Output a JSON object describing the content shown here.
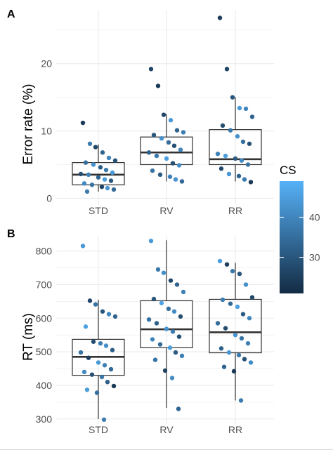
{
  "chart_data": [
    {
      "panel": "A",
      "type": "box",
      "ylabel": "Error rate (%)",
      "categories": [
        "STD",
        "RV",
        "RR"
      ],
      "ylim": [
        -1,
        28
      ],
      "yticks": [
        0,
        10,
        20
      ],
      "grid": true,
      "boxes": [
        {
          "category": "STD",
          "q1": 2.0,
          "median": 3.5,
          "q3": 5.3,
          "whisker_low": 1.0,
          "whisker_high": 8.0
        },
        {
          "category": "RV",
          "q1": 5.0,
          "median": 6.8,
          "q3": 9.1,
          "whisker_low": 2.5,
          "whisker_high": 12.5
        },
        {
          "category": "RR",
          "q1": 5.0,
          "median": 5.8,
          "q3": 10.2,
          "whisker_low": 2.5,
          "whisker_high": 15.0
        }
      ],
      "points": [
        {
          "category": "STD",
          "y": 11.2,
          "cs": 24
        },
        {
          "category": "STD",
          "y": 8.1,
          "cs": 38
        },
        {
          "category": "STD",
          "y": 7.6,
          "cs": 27
        },
        {
          "category": "STD",
          "y": 6.8,
          "cs": 33
        },
        {
          "category": "STD",
          "y": 6.0,
          "cs": 40
        },
        {
          "category": "STD",
          "y": 5.6,
          "cs": 29
        },
        {
          "category": "STD",
          "y": 5.3,
          "cs": 35
        },
        {
          "category": "STD",
          "y": 5.0,
          "cs": 42
        },
        {
          "category": "STD",
          "y": 4.6,
          "cs": 31
        },
        {
          "category": "STD",
          "y": 4.2,
          "cs": 37
        },
        {
          "category": "STD",
          "y": 3.8,
          "cs": 44
        },
        {
          "category": "STD",
          "y": 3.6,
          "cs": 28
        },
        {
          "category": "STD",
          "y": 3.5,
          "cs": 39
        },
        {
          "category": "STD",
          "y": 3.1,
          "cs": 33
        },
        {
          "category": "STD",
          "y": 2.8,
          "cs": 45
        },
        {
          "category": "STD",
          "y": 2.6,
          "cs": 30
        },
        {
          "category": "STD",
          "y": 2.2,
          "cs": 41
        },
        {
          "category": "STD",
          "y": 2.0,
          "cs": 36
        },
        {
          "category": "STD",
          "y": 1.7,
          "cs": 26
        },
        {
          "category": "STD",
          "y": 1.5,
          "cs": 43
        },
        {
          "category": "STD",
          "y": 1.3,
          "cs": 34
        },
        {
          "category": "STD",
          "y": 1.0,
          "cs": 38
        },
        {
          "category": "RV",
          "y": 19.2,
          "cs": 26
        },
        {
          "category": "RV",
          "y": 16.7,
          "cs": 24
        },
        {
          "category": "RV",
          "y": 12.4,
          "cs": 27
        },
        {
          "category": "RV",
          "y": 11.6,
          "cs": 44
        },
        {
          "category": "RV",
          "y": 10.1,
          "cs": 33
        },
        {
          "category": "RV",
          "y": 9.8,
          "cs": 38
        },
        {
          "category": "RV",
          "y": 9.4,
          "cs": 30
        },
        {
          "category": "RV",
          "y": 8.9,
          "cs": 42
        },
        {
          "category": "RV",
          "y": 8.3,
          "cs": 35
        },
        {
          "category": "RV",
          "y": 7.8,
          "cs": 28
        },
        {
          "category": "RV",
          "y": 7.2,
          "cs": 40
        },
        {
          "category": "RV",
          "y": 6.8,
          "cs": 32
        },
        {
          "category": "RV",
          "y": 6.3,
          "cs": 37
        },
        {
          "category": "RV",
          "y": 5.9,
          "cs": 45
        },
        {
          "category": "RV",
          "y": 5.2,
          "cs": 29
        },
        {
          "category": "RV",
          "y": 4.9,
          "cs": 41
        },
        {
          "category": "RV",
          "y": 4.1,
          "cs": 36
        },
        {
          "category": "RV",
          "y": 3.5,
          "cs": 31
        },
        {
          "category": "RV",
          "y": 3.2,
          "cs": 39
        },
        {
          "category": "RV",
          "y": 2.8,
          "cs": 43
        },
        {
          "category": "RV",
          "y": 2.5,
          "cs": 34
        },
        {
          "category": "RR",
          "y": 26.8,
          "cs": 25
        },
        {
          "category": "RR",
          "y": 19.2,
          "cs": 26
        },
        {
          "category": "RR",
          "y": 15.0,
          "cs": 30
        },
        {
          "category": "RR",
          "y": 13.4,
          "cs": 44
        },
        {
          "category": "RR",
          "y": 13.3,
          "cs": 40
        },
        {
          "category": "RR",
          "y": 12.1,
          "cs": 33
        },
        {
          "category": "RR",
          "y": 10.8,
          "cs": 28
        },
        {
          "category": "RR",
          "y": 10.1,
          "cs": 37
        },
        {
          "category": "RR",
          "y": 9.2,
          "cs": 42
        },
        {
          "category": "RR",
          "y": 8.4,
          "cs": 35
        },
        {
          "category": "RR",
          "y": 8.1,
          "cs": 29
        },
        {
          "category": "RR",
          "y": 6.6,
          "cs": 39
        },
        {
          "category": "RR",
          "y": 6.3,
          "cs": 45
        },
        {
          "category": "RR",
          "y": 5.9,
          "cs": 31
        },
        {
          "category": "RR",
          "y": 5.6,
          "cs": 41
        },
        {
          "category": "RR",
          "y": 5.0,
          "cs": 36
        },
        {
          "category": "RR",
          "y": 4.4,
          "cs": 27
        },
        {
          "category": "RR",
          "y": 3.6,
          "cs": 43
        },
        {
          "category": "RR",
          "y": 3.3,
          "cs": 32
        },
        {
          "category": "RR",
          "y": 2.8,
          "cs": 38
        },
        {
          "category": "RR",
          "y": 2.4,
          "cs": 24
        }
      ]
    },
    {
      "panel": "B",
      "type": "box",
      "ylabel": "RT (ms)",
      "categories": [
        "STD",
        "RV",
        "RR"
      ],
      "ylim": [
        285,
        845
      ],
      "yticks": [
        300,
        400,
        500,
        600,
        700,
        800
      ],
      "grid": true,
      "boxes": [
        {
          "category": "STD",
          "q1": 430,
          "median": 485,
          "q3": 537,
          "whisker_low": 300,
          "whisker_high": 655
        },
        {
          "category": "RV",
          "q1": 512,
          "median": 567,
          "q3": 652,
          "whisker_low": 333,
          "whisker_high": 832
        },
        {
          "category": "RR",
          "q1": 497,
          "median": 558,
          "q3": 656,
          "whisker_low": 355,
          "whisker_high": 765
        }
      ],
      "points": [
        {
          "category": "STD",
          "y": 815,
          "cs": 44
        },
        {
          "category": "STD",
          "y": 652,
          "cs": 27
        },
        {
          "category": "STD",
          "y": 641,
          "cs": 36
        },
        {
          "category": "STD",
          "y": 620,
          "cs": 30
        },
        {
          "category": "STD",
          "y": 612,
          "cs": 40
        },
        {
          "category": "STD",
          "y": 605,
          "cs": 33
        },
        {
          "category": "STD",
          "y": 575,
          "cs": 46
        },
        {
          "category": "STD",
          "y": 530,
          "cs": 28
        },
        {
          "category": "STD",
          "y": 525,
          "cs": 38
        },
        {
          "category": "STD",
          "y": 518,
          "cs": 42
        },
        {
          "category": "STD",
          "y": 505,
          "cs": 31
        },
        {
          "category": "STD",
          "y": 498,
          "cs": 36
        },
        {
          "category": "STD",
          "y": 482,
          "cs": 25
        },
        {
          "category": "STD",
          "y": 468,
          "cs": 44
        },
        {
          "category": "STD",
          "y": 460,
          "cs": 39
        },
        {
          "category": "STD",
          "y": 448,
          "cs": 34
        },
        {
          "category": "STD",
          "y": 440,
          "cs": 41
        },
        {
          "category": "STD",
          "y": 432,
          "cs": 29
        },
        {
          "category": "STD",
          "y": 425,
          "cs": 37
        },
        {
          "category": "STD",
          "y": 410,
          "cs": 32
        },
        {
          "category": "STD",
          "y": 398,
          "cs": 24
        },
        {
          "category": "STD",
          "y": 387,
          "cs": 45
        },
        {
          "category": "STD",
          "y": 378,
          "cs": 35
        },
        {
          "category": "STD",
          "y": 298,
          "cs": 38
        },
        {
          "category": "RV",
          "y": 830,
          "cs": 44
        },
        {
          "category": "RV",
          "y": 745,
          "cs": 37
        },
        {
          "category": "RV",
          "y": 735,
          "cs": 42
        },
        {
          "category": "RV",
          "y": 712,
          "cs": 27
        },
        {
          "category": "RV",
          "y": 700,
          "cs": 33
        },
        {
          "category": "RV",
          "y": 678,
          "cs": 39
        },
        {
          "category": "RV",
          "y": 657,
          "cs": 30
        },
        {
          "category": "RV",
          "y": 645,
          "cs": 46
        },
        {
          "category": "RV",
          "y": 628,
          "cs": 35
        },
        {
          "category": "RV",
          "y": 620,
          "cs": 41
        },
        {
          "category": "RV",
          "y": 605,
          "cs": 28
        },
        {
          "category": "RV",
          "y": 596,
          "cs": 36
        },
        {
          "category": "RV",
          "y": 585,
          "cs": 32
        },
        {
          "category": "RV",
          "y": 568,
          "cs": 43
        },
        {
          "category": "RV",
          "y": 560,
          "cs": 38
        },
        {
          "category": "RV",
          "y": 545,
          "cs": 29
        },
        {
          "category": "RV",
          "y": 537,
          "cs": 40
        },
        {
          "category": "RV",
          "y": 522,
          "cs": 34
        },
        {
          "category": "RV",
          "y": 512,
          "cs": 45
        },
        {
          "category": "RV",
          "y": 498,
          "cs": 31
        },
        {
          "category": "RV",
          "y": 488,
          "cs": 39
        },
        {
          "category": "RV",
          "y": 476,
          "cs": 36
        },
        {
          "category": "RV",
          "y": 444,
          "cs": 26
        },
        {
          "category": "RV",
          "y": 422,
          "cs": 41
        },
        {
          "category": "RV",
          "y": 330,
          "cs": 33
        },
        {
          "category": "RR",
          "y": 770,
          "cs": 45
        },
        {
          "category": "RR",
          "y": 760,
          "cs": 25
        },
        {
          "category": "RR",
          "y": 740,
          "cs": 37
        },
        {
          "category": "RR",
          "y": 732,
          "cs": 30
        },
        {
          "category": "RR",
          "y": 700,
          "cs": 42
        },
        {
          "category": "RR",
          "y": 662,
          "cs": 27
        },
        {
          "category": "RR",
          "y": 655,
          "cs": 38
        },
        {
          "category": "RR",
          "y": 643,
          "cs": 34
        },
        {
          "category": "RR",
          "y": 634,
          "cs": 46
        },
        {
          "category": "RR",
          "y": 612,
          "cs": 31
        },
        {
          "category": "RR",
          "y": 600,
          "cs": 40
        },
        {
          "category": "RR",
          "y": 585,
          "cs": 35
        },
        {
          "category": "RR",
          "y": 570,
          "cs": 28
        },
        {
          "category": "RR",
          "y": 550,
          "cs": 43
        },
        {
          "category": "RR",
          "y": 540,
          "cs": 36
        },
        {
          "category": "RR",
          "y": 525,
          "cs": 39
        },
        {
          "category": "RR",
          "y": 510,
          "cs": 32
        },
        {
          "category": "RR",
          "y": 498,
          "cs": 44
        },
        {
          "category": "RR",
          "y": 490,
          "cs": 37
        },
        {
          "category": "RR",
          "y": 478,
          "cs": 29
        },
        {
          "category": "RR",
          "y": 468,
          "cs": 41
        },
        {
          "category": "RR",
          "y": 455,
          "cs": 33
        },
        {
          "category": "RR",
          "y": 442,
          "cs": 24
        },
        {
          "category": "RR",
          "y": 355,
          "cs": 38
        }
      ]
    }
  ],
  "legend": {
    "title": "CS",
    "ticks": [
      30,
      40
    ],
    "range": [
      21,
      49
    ],
    "color_low": "#132B43",
    "color_high": "#56B1F7",
    "placement": "right"
  },
  "colors": {
    "grid": "#ebebeb",
    "box_line": "#333333",
    "median": "#333333",
    "tick_text": "#4d4d4d"
  }
}
